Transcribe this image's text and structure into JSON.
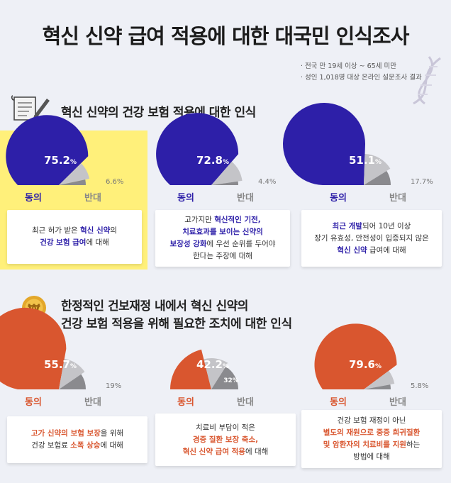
{
  "title": "혁신 신약 급여 적용에 대한 대국민 인식조사",
  "notes": [
    "· 전국 만 19세 이상 ~ 65세 미만",
    "· 성인 1,018명 대상 온라인 설문조사 결과"
  ],
  "section1": {
    "title": "혁신 신약의 건강 보험 적용에 대한 인식"
  },
  "section2": {
    "title_line1": "한정적인 건보재정 내에서 혁신 신약의",
    "title_line2": "건강 보험 적용을 위해 필요한 조치에 대한 인식"
  },
  "colors": {
    "blue": "#2d1fa8",
    "orange": "#d9562f",
    "gray_light": "#c4c4c8",
    "gray_dark": "#8a8a8e",
    "highlight": "#fff07a"
  },
  "chart_data": [
    {
      "type": "gauge",
      "agree_label": "동의",
      "disagree_label": "반대",
      "agree": 75.2,
      "disagree": 6.6,
      "agree_text": "75.2",
      "disagree_text": "6.6%",
      "disagree_on_chart": false,
      "unit": "%",
      "desc": [
        [
          {
            "t": "최근 허가 받은 "
          },
          {
            "t": "혁신 신약",
            "b": 1
          },
          {
            "t": "의"
          }
        ],
        [
          {
            "t": "건강 보험 급여",
            "b": 1
          },
          {
            "t": "에 대해"
          }
        ]
      ]
    },
    {
      "type": "gauge",
      "agree_label": "동의",
      "disagree_label": "반대",
      "agree": 72.8,
      "disagree": 4.4,
      "agree_text": "72.8",
      "disagree_text": "4.4%",
      "disagree_on_chart": false,
      "unit": "%",
      "desc": [
        [
          {
            "t": "고가지만 "
          },
          {
            "t": "혁신적인 기전,",
            "b": 1
          }
        ],
        [
          {
            "t": "치료효과를 보이는 신약의",
            "b": 1
          }
        ],
        [
          {
            "t": "보장성 강화",
            "b": 1
          },
          {
            "t": "에 우선 순위를 두어야"
          }
        ],
        [
          {
            "t": "한다는 주장에 대해"
          }
        ]
      ]
    },
    {
      "type": "gauge",
      "agree_label": "동의",
      "disagree_label": "반대",
      "agree": 51.1,
      "disagree": 17.7,
      "agree_text": "51.1",
      "disagree_text": "17.7%",
      "disagree_on_chart": false,
      "unit": "%",
      "desc": [
        [
          {
            "t": "최근 개발",
            "b": 1
          },
          {
            "t": "되어 10년 이상"
          }
        ],
        [
          {
            "t": "장기 유효성, 안전성이 입증되지 않은"
          }
        ],
        [
          {
            "t": "혁신 신약",
            "b": 1
          },
          {
            "t": " 급여에 대해"
          }
        ]
      ]
    },
    {
      "type": "gauge",
      "agree_label": "동의",
      "disagree_label": "반대",
      "agree": 55.7,
      "disagree": 19,
      "agree_text": "55.7",
      "disagree_text": "19%",
      "disagree_on_chart": false,
      "unit": "%",
      "desc": [
        [
          {
            "t": "고가 신약의 보험 보장",
            "b": 1
          },
          {
            "t": "을 위해"
          }
        ],
        [
          {
            "t": "건강 보험료 "
          },
          {
            "t": "소폭 상승",
            "b": 1
          },
          {
            "t": "에 대해"
          }
        ]
      ]
    },
    {
      "type": "gauge",
      "agree_label": "동의",
      "disagree_label": "반대",
      "agree": 42.2,
      "disagree": 32,
      "agree_text": "42.2",
      "disagree_text": "32%",
      "disagree_on_chart": true,
      "unit": "%",
      "desc": [
        [
          {
            "t": "치료비 부담이 적은"
          }
        ],
        [
          {
            "t": "경증 질환 보장 축소,",
            "b": 1
          }
        ],
        [
          {
            "t": "혁신 신약 급여 적용",
            "b": 1
          },
          {
            "t": "에 대해"
          }
        ]
      ]
    },
    {
      "type": "gauge",
      "agree_label": "동의",
      "disagree_label": "반대",
      "agree": 79.6,
      "disagree": 5.8,
      "agree_text": "79.6",
      "disagree_text": "5.8%",
      "disagree_on_chart": false,
      "unit": "%",
      "desc": [
        [
          {
            "t": "건강 보험 재정이 아닌"
          }
        ],
        [
          {
            "t": "별도의 재원으로 중증 희귀질환",
            "b": 1
          }
        ],
        [
          {
            "t": "및 암환자의 치료비를 지원",
            "b": 1
          },
          {
            "t": "하는"
          }
        ],
        [
          {
            "t": "방법에 대해"
          }
        ]
      ]
    }
  ]
}
